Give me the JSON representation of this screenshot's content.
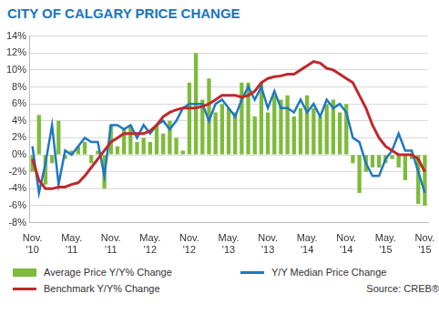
{
  "chart_data": {
    "type": "bar",
    "title": "CITY OF CALGARY PRICE CHANGE",
    "annotation": "Source: CREB®",
    "color": "#1a75bc",
    "categories": [
      "Nov. '10",
      null,
      null,
      null,
      null,
      null,
      "May. '11",
      null,
      null,
      null,
      null,
      null,
      "Nov. '11",
      null,
      null,
      null,
      null,
      null,
      "May. '12",
      null,
      null,
      null,
      null,
      null,
      "Nov. '12",
      null,
      null,
      null,
      null,
      null,
      "May. '13",
      null,
      null,
      null,
      null,
      null,
      "Nov. '13",
      null,
      null,
      null,
      null,
      null,
      "May. '14",
      null,
      null,
      null,
      null,
      null,
      "Nov. '14",
      null,
      null,
      null,
      null,
      null,
      "May. '15",
      null,
      null,
      null,
      null,
      null,
      "Nov. '15"
    ],
    "ylim": [
      -8,
      14
    ],
    "yticks": [
      {
        "value": -8,
        "label": "-8%"
      },
      {
        "value": -6,
        "label": "-6%"
      },
      {
        "value": -4,
        "label": "-4%"
      },
      {
        "value": -2,
        "label": "-2%"
      },
      {
        "value": 0,
        "label": "0%"
      },
      {
        "value": 2,
        "label": "2%"
      },
      {
        "value": 4,
        "label": "4%"
      },
      {
        "value": 6,
        "label": "6%"
      },
      {
        "value": 8,
        "label": "8%"
      },
      {
        "value": 10,
        "label": "10%"
      },
      {
        "value": 12,
        "label": "12%"
      },
      {
        "value": 14,
        "label": "14%"
      }
    ],
    "grid": true,
    "legend": "bottom",
    "series": [
      {
        "name": "Average Price Y/Y% Change",
        "type": "bar",
        "color": "#7dbb3a",
        "values": [
          -2,
          4.7,
          -3.5,
          -1,
          4,
          -0.5,
          0.5,
          1,
          1.5,
          -1,
          0.5,
          -4,
          3.5,
          1,
          3,
          3.5,
          1.5,
          2,
          1.5,
          3.5,
          2.5,
          4,
          2,
          0.5,
          8.5,
          12,
          6.5,
          9,
          5,
          6,
          5.5,
          5,
          8.5,
          8.5,
          4.5,
          8.5,
          5,
          7,
          6.5,
          7,
          4.5,
          5.5,
          7,
          5.5,
          4.5,
          6,
          6.5,
          5,
          6,
          -1,
          -4.5,
          -2,
          -1.5,
          -1.5,
          -1,
          -0.5,
          -1.5,
          -3,
          -0.5,
          -5.8,
          -6
        ]
      },
      {
        "name": "Y/Y Median Price Change",
        "type": "line",
        "color": "#1f78c1",
        "values": [
          1,
          -4.5,
          -1,
          3.5,
          -3.5,
          0.5,
          0,
          1,
          2,
          1.5,
          1.5,
          -2.5,
          3.5,
          3.5,
          3,
          3.5,
          2,
          3.5,
          2.5,
          3.5,
          4,
          3,
          4,
          5.5,
          6,
          6,
          6,
          4,
          6,
          6.5,
          5.5,
          4.5,
          6.5,
          8,
          6.5,
          8,
          5.5,
          7.5,
          5.5,
          5.5,
          5,
          6.5,
          5,
          6,
          4.5,
          6.5,
          5.5,
          6,
          5,
          2,
          1.5,
          -1,
          -2.5,
          -2.5,
          -0.5,
          0.5,
          2.5,
          0.5,
          0.5,
          -2,
          -4.5
        ]
      },
      {
        "name": "Benchmark Y/Y% Change",
        "type": "line",
        "color": "#c0282d",
        "values": [
          -0.5,
          -3,
          -4,
          -4,
          -3.8,
          -3.8,
          -3.5,
          -3.3,
          -2.5,
          -1.5,
          -0.5,
          0.5,
          1.5,
          2,
          2.5,
          2.5,
          2.5,
          2.5,
          2.8,
          3.5,
          4.5,
          5,
          5.3,
          5.5,
          5.5,
          5.5,
          5.7,
          6,
          6.5,
          7,
          7,
          7,
          6.8,
          7,
          7.5,
          8.5,
          9,
          9.2,
          9.3,
          9.5,
          9.5,
          10,
          10.5,
          11,
          10.8,
          10.2,
          10,
          9.5,
          9,
          8.5,
          7,
          5.5,
          3.5,
          2,
          1,
          0.5,
          0,
          0,
          0,
          -0.5,
          -2
        ]
      }
    ]
  }
}
